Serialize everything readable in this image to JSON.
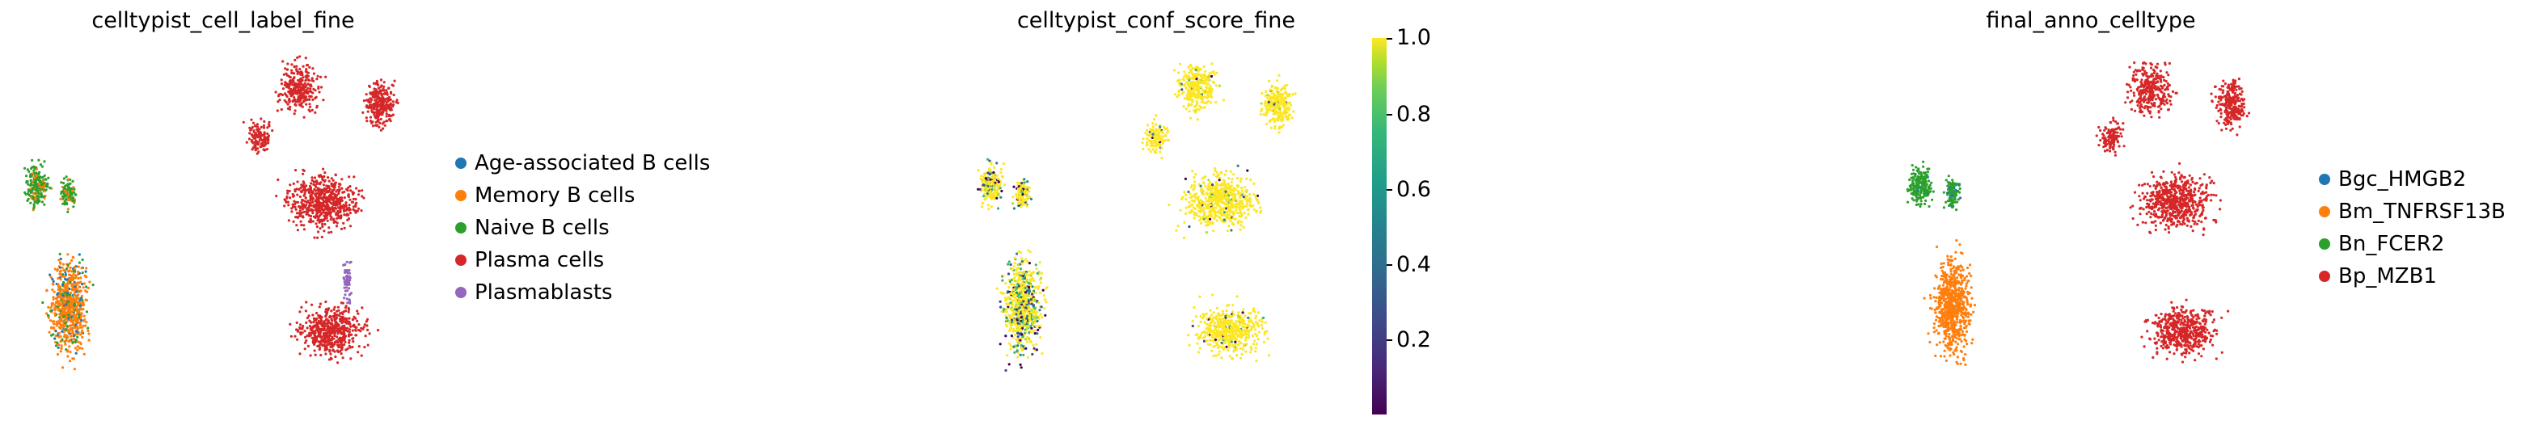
{
  "panels": [
    {
      "title": "celltypist_cell_label_fine",
      "legend": [
        {
          "label": "Age-associated B cells",
          "color": "#1f77b4"
        },
        {
          "label": "Memory B cells",
          "color": "#ff7f0e"
        },
        {
          "label": "Naive B cells",
          "color": "#2ca02c"
        },
        {
          "label": "Plasma cells",
          "color": "#d62728"
        },
        {
          "label": "Plasmablasts",
          "color": "#9467bd"
        }
      ]
    },
    {
      "title": "celltypist_conf_score_fine",
      "colorbar": {
        "colormap": "viridis",
        "range": [
          0.0,
          1.0
        ],
        "ticks": [
          "1.0",
          "0.8",
          "0.6",
          "0.4",
          "0.2"
        ]
      }
    },
    {
      "title": "final_anno_celltype",
      "legend": [
        {
          "label": "Bgc_HMGB2",
          "color": "#1f77b4"
        },
        {
          "label": "Bm_TNFRSF13B",
          "color": "#ff7f0e"
        },
        {
          "label": "Bn_FCER2",
          "color": "#2ca02c"
        },
        {
          "label": "Bp_MZB1",
          "color": "#d62728"
        }
      ]
    }
  ],
  "chart_data": [
    {
      "type": "scatter",
      "title": "celltypist_cell_label_fine",
      "xlabel": "",
      "ylabel": "",
      "series": [
        {
          "name": "Age-associated B cells",
          "color": "#1f77b4"
        },
        {
          "name": "Memory B cells",
          "color": "#ff7f0e"
        },
        {
          "name": "Naive B cells",
          "color": "#2ca02c"
        },
        {
          "name": "Plasma cells",
          "color": "#d62728"
        },
        {
          "name": "Plasmablasts",
          "color": "#9467bd"
        }
      ],
      "legend_position": "right"
    },
    {
      "type": "scatter",
      "title": "celltypist_conf_score_fine",
      "xlabel": "",
      "ylabel": "",
      "color_scale": "viridis",
      "color_range": [
        0.0,
        1.0
      ],
      "legend_position": "right"
    },
    {
      "type": "scatter",
      "title": "final_anno_celltype",
      "xlabel": "",
      "ylabel": "",
      "series": [
        {
          "name": "Bgc_HMGB2",
          "color": "#1f77b4"
        },
        {
          "name": "Bm_TNFRSF13B",
          "color": "#ff7f0e"
        },
        {
          "name": "Bn_FCER2",
          "color": "#2ca02c"
        },
        {
          "name": "Bp_MZB1",
          "color": "#d62728"
        }
      ],
      "legend_position": "right"
    }
  ]
}
